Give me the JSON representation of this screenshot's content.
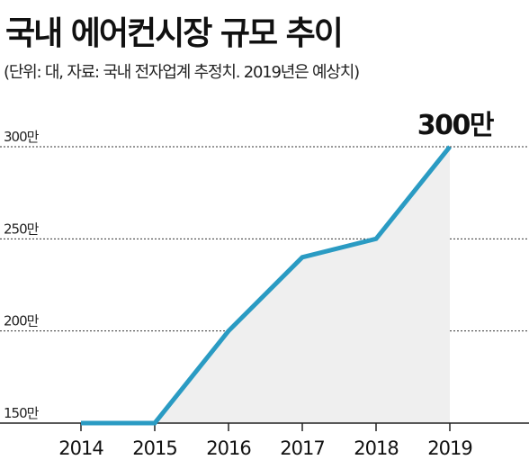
{
  "header": {
    "title": "국내 에어컨시장 규모 추이",
    "subtitle": "(단위: 대, 자료: 국내 전자업계 추정치. 2019년은 예상치)"
  },
  "chart_data": {
    "type": "area",
    "title": "국내 에어컨시장 규모 추이",
    "subtitle": "(단위: 대, 자료: 국내 전자업계 추정치. 2019년은 예상치)",
    "categories": [
      "2014",
      "2015",
      "2016",
      "2017",
      "2018",
      "2019"
    ],
    "series": [
      {
        "values": [
          150,
          150,
          200,
          240,
          250,
          300
        ]
      }
    ],
    "y_ticks": [
      {
        "value": 150,
        "label": "150만"
      },
      {
        "value": 200,
        "label": "200만"
      },
      {
        "value": 250,
        "label": "250만"
      },
      {
        "value": 300,
        "label": "300만"
      }
    ],
    "ylim": [
      150,
      300
    ],
    "annotations": [
      {
        "category": "2019",
        "value": 300,
        "text": "300만"
      }
    ],
    "grid": true,
    "colors": {
      "line": "#2a9bc3",
      "fill": "#efefef",
      "grid": "#333333",
      "axis": "#222222"
    }
  }
}
